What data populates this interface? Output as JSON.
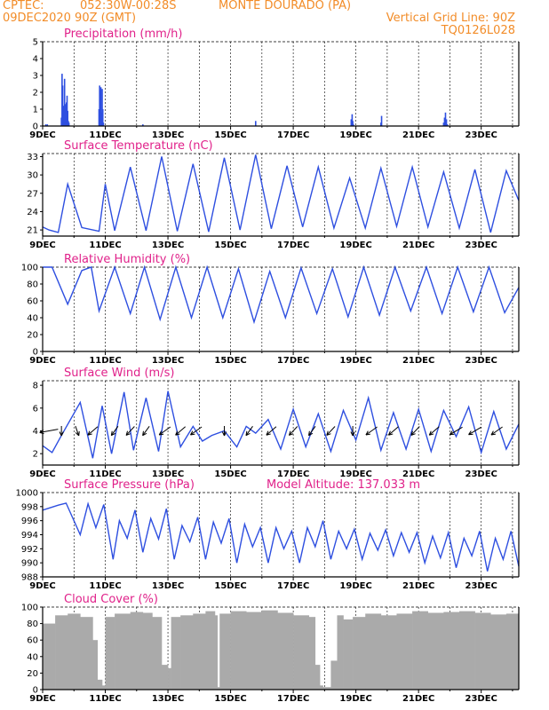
{
  "header": {
    "line1_left": "CPTEC:",
    "line1_coords": "052:30W-00:28S",
    "line1_place": "MONTE DOURADO (PA)",
    "line2_left": "09DEC2020 90Z (GMT)",
    "line2_right": "Vertical Grid Line: 90Z",
    "line3_right": "TQ0126L028"
  },
  "colors": {
    "header": "#f28c28",
    "title": "#e0218a",
    "series": "#2e4fe0",
    "cloud": "#aaaaaa",
    "arrows": "#000000"
  },
  "x_ticks": [
    "9DEC",
    "11DEC",
    "13DEC",
    "15DEC",
    "17DEC",
    "19DEC",
    "21DEC",
    "23DEC"
  ],
  "chart_data": [
    {
      "type": "bar",
      "title": "Precipitation (mm/h)",
      "xlim": [
        9,
        24.2
      ],
      "ylim": [
        0,
        5
      ],
      "yticks": [
        0,
        1,
        2,
        3,
        4,
        5
      ],
      "x": [
        9.1,
        9.15,
        9.6,
        9.62,
        9.64,
        9.66,
        9.68,
        9.7,
        9.72,
        9.74,
        9.76,
        9.78,
        9.8,
        9.82,
        9.84,
        10.8,
        10.82,
        10.84,
        10.86,
        10.88,
        10.9,
        10.92,
        10.94,
        12.2,
        15.8,
        18.85,
        18.88,
        18.9,
        18.92,
        19.8,
        19.82,
        21.8,
        21.83,
        21.86,
        21.89,
        21.92
      ],
      "values": [
        0.1,
        0.1,
        0.5,
        3.1,
        2.4,
        1.2,
        0.6,
        2.8,
        1.3,
        0.5,
        1.4,
        1.8,
        0.9,
        0.3,
        0.2,
        1.0,
        2.4,
        2.1,
        2.3,
        0.8,
        2.2,
        1.0,
        0.2,
        0.1,
        0.3,
        0.4,
        0.7,
        0.3,
        0.1,
        0.2,
        0.6,
        0.2,
        0.5,
        0.8,
        0.4,
        0.1
      ]
    },
    {
      "type": "line",
      "title": "Surface Temperature (nC)",
      "xlim": [
        9,
        24.2
      ],
      "ylim": [
        20,
        33.5
      ],
      "yticks": [
        21,
        24,
        27,
        30,
        33
      ],
      "x": [
        9.0,
        9.2,
        9.5,
        9.8,
        10.25,
        10.8,
        11.0,
        11.3,
        11.8,
        12.3,
        12.8,
        13.3,
        13.8,
        14.3,
        14.8,
        15.3,
        15.8,
        16.3,
        16.8,
        17.3,
        17.8,
        18.3,
        18.8,
        19.3,
        19.8,
        20.3,
        20.8,
        21.3,
        21.8,
        22.3,
        22.8,
        23.3,
        23.8,
        24.2
      ],
      "values": [
        21.5,
        21.0,
        20.6,
        28.5,
        21.4,
        20.8,
        28.5,
        20.9,
        31.3,
        20.9,
        33.0,
        20.8,
        31.8,
        20.7,
        32.8,
        21.0,
        33.3,
        21.2,
        31.5,
        21.5,
        31.3,
        21.3,
        29.5,
        21.3,
        31.1,
        21.6,
        31.3,
        21.5,
        30.5,
        21.3,
        30.9,
        20.6,
        30.7,
        25.8
      ]
    },
    {
      "type": "line",
      "title": "Relative Humidity (%)",
      "xlim": [
        9,
        24.2
      ],
      "ylim": [
        0,
        100
      ],
      "yticks": [
        0,
        20,
        40,
        60,
        80,
        100
      ],
      "x": [
        9.0,
        9.3,
        9.8,
        10.25,
        10.55,
        10.8,
        11.3,
        11.8,
        12.25,
        12.75,
        13.25,
        13.75,
        14.25,
        14.75,
        15.25,
        15.75,
        16.25,
        16.75,
        17.25,
        17.75,
        18.25,
        18.75,
        19.25,
        19.75,
        20.25,
        20.75,
        21.25,
        21.75,
        22.25,
        22.75,
        23.25,
        23.75,
        24.2
      ],
      "values": [
        100,
        100,
        56,
        96,
        100,
        48,
        100,
        45,
        100,
        38,
        100,
        40,
        100,
        40,
        98,
        35,
        95,
        40,
        99,
        45,
        98,
        41,
        100,
        43,
        100,
        48,
        100,
        45,
        100,
        47,
        100,
        46,
        76
      ]
    },
    {
      "type": "line",
      "title": "Surface Wind (m/s)",
      "xlim": [
        9,
        24.2
      ],
      "ylim": [
        1,
        8.4
      ],
      "yticks": [
        2,
        4,
        6,
        8
      ],
      "x": [
        9.0,
        9.3,
        9.6,
        10.2,
        10.6,
        10.9,
        11.2,
        11.6,
        11.9,
        12.3,
        12.7,
        13.0,
        13.4,
        13.8,
        14.1,
        14.4,
        14.8,
        15.2,
        15.5,
        15.8,
        16.2,
        16.6,
        17.0,
        17.4,
        17.8,
        18.2,
        18.6,
        19.0,
        19.4,
        19.8,
        20.2,
        20.6,
        21.0,
        21.4,
        21.8,
        22.2,
        22.6,
        23.0,
        23.4,
        23.8,
        24.2
      ],
      "values": [
        2.7,
        2.1,
        3.6,
        6.5,
        1.6,
        6.2,
        2.0,
        7.4,
        2.3,
        6.9,
        2.2,
        7.5,
        2.6,
        4.4,
        3.1,
        3.6,
        4.0,
        2.6,
        4.4,
        3.8,
        5.0,
        2.4,
        5.9,
        2.6,
        5.5,
        2.2,
        5.8,
        3.2,
        6.9,
        2.3,
        5.6,
        2.4,
        5.9,
        2.2,
        5.8,
        3.5,
        6.1,
        2.1,
        5.7,
        2.4,
        4.6
      ],
      "arrows_x": [
        9.2,
        9.6,
        10.1,
        10.6,
        11.3,
        11.8,
        12.3,
        12.9,
        13.4,
        13.9,
        14.8,
        15.6,
        16.3,
        17.0,
        17.6,
        18.2,
        18.9,
        19.5,
        20.2,
        20.9,
        21.5,
        22.2,
        22.8,
        23.5
      ],
      "arrows_dir": [
        200,
        270,
        280,
        240,
        250,
        245,
        250,
        235,
        240,
        235,
        270,
        250,
        240,
        245,
        250,
        245,
        270,
        235,
        240,
        245,
        240,
        230,
        230,
        235
      ]
    },
    {
      "type": "line",
      "title": "Surface Pressure (hPa)",
      "annotation": "Model Altitude: 137.033 m",
      "xlim": [
        9,
        24.2
      ],
      "ylim": [
        988,
        1000
      ],
      "yticks": [
        988,
        990,
        992,
        994,
        996,
        998,
        1000
      ],
      "x": [
        9.0,
        9.5,
        9.75,
        10.2,
        10.45,
        10.7,
        10.95,
        11.25,
        11.45,
        11.7,
        11.95,
        12.2,
        12.45,
        12.7,
        12.95,
        13.2,
        13.45,
        13.7,
        13.95,
        14.2,
        14.45,
        14.7,
        14.95,
        15.2,
        15.45,
        15.7,
        15.95,
        16.2,
        16.45,
        16.7,
        16.95,
        17.2,
        17.45,
        17.7,
        17.95,
        18.2,
        18.45,
        18.7,
        18.95,
        19.2,
        19.45,
        19.7,
        19.95,
        20.2,
        20.45,
        20.7,
        20.95,
        21.2,
        21.45,
        21.7,
        21.95,
        22.2,
        22.45,
        22.7,
        22.95,
        23.2,
        23.45,
        23.7,
        23.95,
        24.2
      ],
      "values": [
        997.5,
        998.2,
        998.5,
        994,
        998.4,
        995,
        998.3,
        990.5,
        996,
        993.5,
        997.5,
        991.5,
        996.3,
        993.4,
        997.7,
        990.5,
        995.3,
        993,
        996.5,
        990.5,
        995.8,
        992.8,
        996.3,
        990,
        995.5,
        992.3,
        995,
        990,
        995,
        992,
        994.5,
        990,
        995,
        992.3,
        996,
        990.5,
        994.5,
        992,
        994.8,
        990.5,
        994.2,
        991.8,
        994.7,
        991,
        994.3,
        991.5,
        994.3,
        990,
        993.8,
        990.7,
        994.3,
        989.3,
        993.5,
        991,
        994.5,
        988.8,
        993.5,
        990.5,
        994.5,
        989.5
      ]
    },
    {
      "type": "area",
      "title": "Cloud Cover (%)",
      "xlim": [
        9,
        24.2
      ],
      "ylim": [
        0,
        100
      ],
      "yticks": [
        0,
        20,
        40,
        60,
        80,
        100
      ],
      "x": [
        9.0,
        9.4,
        9.8,
        10.2,
        10.6,
        10.75,
        10.9,
        11.0,
        11.3,
        11.8,
        12.2,
        12.5,
        12.8,
        13.0,
        13.1,
        13.4,
        13.8,
        14.2,
        14.5,
        14.58,
        14.65,
        15.0,
        15.5,
        16.0,
        16.5,
        17.0,
        17.5,
        17.7,
        17.85,
        17.95,
        18.2,
        18.4,
        18.6,
        18.9,
        19.3,
        19.8,
        20.3,
        20.8,
        21.3,
        21.8,
        22.3,
        22.8,
        23.3,
        23.8,
        24.2
      ],
      "values": [
        80,
        90,
        92,
        88,
        60,
        12,
        5,
        88,
        92,
        94,
        93,
        88,
        30,
        26,
        88,
        90,
        92,
        95,
        90,
        3,
        92,
        95,
        94,
        96,
        93,
        90,
        88,
        30,
        5,
        3,
        35,
        90,
        85,
        88,
        92,
        90,
        92,
        95,
        93,
        94,
        95,
        93,
        91,
        92,
        93
      ]
    }
  ]
}
